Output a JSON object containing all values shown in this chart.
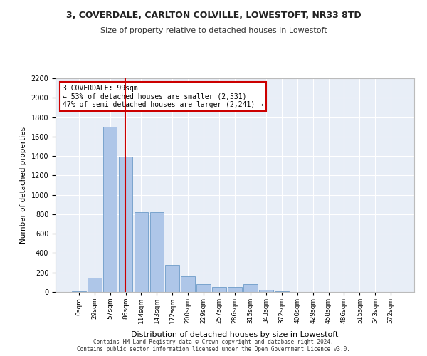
{
  "title_line1": "3, COVERDALE, CARLTON COLVILLE, LOWESTOFT, NR33 8TD",
  "title_line2": "Size of property relative to detached houses in Lowestoft",
  "xlabel": "Distribution of detached houses by size in Lowestoft",
  "ylabel": "Number of detached properties",
  "bar_values": [
    5,
    150,
    1700,
    1390,
    820,
    820,
    280,
    160,
    80,
    50,
    50,
    80,
    20,
    5,
    0,
    0,
    0,
    0,
    0,
    0,
    0
  ],
  "bar_labels": [
    "0sqm",
    "29sqm",
    "57sqm",
    "86sqm",
    "114sqm",
    "143sqm",
    "172sqm",
    "200sqm",
    "229sqm",
    "257sqm",
    "286sqm",
    "315sqm",
    "343sqm",
    "372sqm",
    "400sqm",
    "429sqm",
    "458sqm",
    "486sqm",
    "515sqm",
    "543sqm",
    "572sqm"
  ],
  "bar_color": "#aec6e8",
  "bar_edge_color": "#5a8fc0",
  "background_color": "#e8eef7",
  "vline_color": "#cc0000",
  "annotation_text": "3 COVERDALE: 99sqm\n← 53% of detached houses are smaller (2,531)\n47% of semi-detached houses are larger (2,241) →",
  "annotation_box_color": "#cc0000",
  "ylim": [
    0,
    2200
  ],
  "yticks": [
    0,
    200,
    400,
    600,
    800,
    1000,
    1200,
    1400,
    1600,
    1800,
    2000,
    2200
  ],
  "footer_line1": "Contains HM Land Registry data © Crown copyright and database right 2024.",
  "footer_line2": "Contains public sector information licensed under the Open Government Licence v3.0."
}
